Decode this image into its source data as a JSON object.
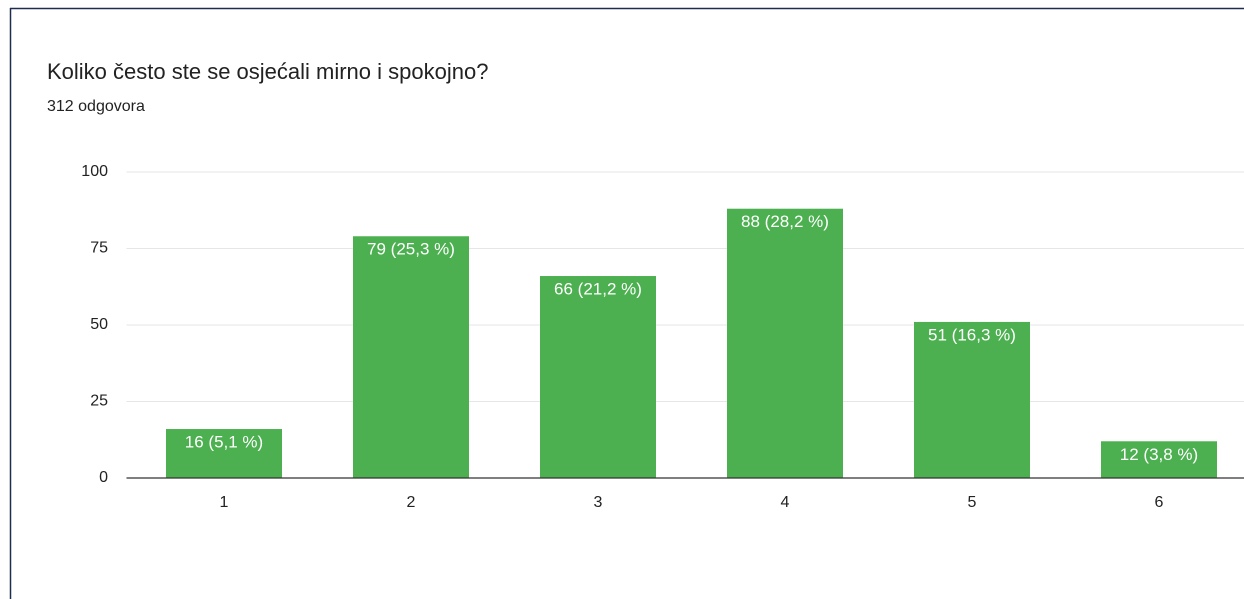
{
  "chart_data": {
    "type": "bar",
    "title": "Koliko često ste se osjećali mirno i spokojno?",
    "subtitle": "312 odgovora",
    "categories": [
      "1",
      "2",
      "3",
      "4",
      "5",
      "6"
    ],
    "values": [
      16,
      79,
      66,
      88,
      51,
      12
    ],
    "value_labels": [
      "16 (5,1 %)",
      "79 (25,3 %)",
      "66 (21,2 %)",
      "88 (28,2 %)",
      "51 (16,3 %)",
      "12 (3,8 %)"
    ],
    "color": "#4caf50",
    "ylim": [
      0,
      100
    ],
    "yticks": [
      0,
      25,
      50,
      75,
      100
    ],
    "grid": true
  }
}
